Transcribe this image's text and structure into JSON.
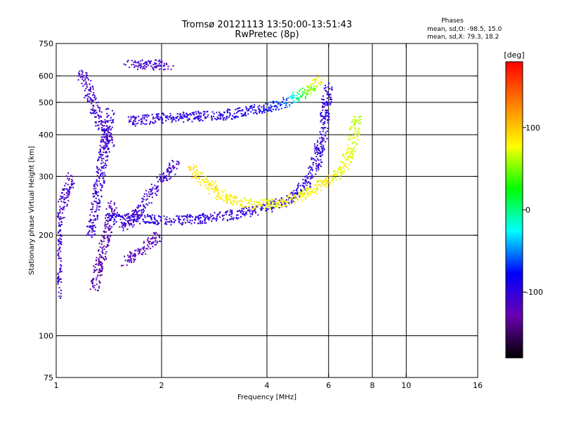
{
  "chart_data": {
    "type": "scatter",
    "title": "Tromsø 20121113 13:50:00-13:51:43",
    "subtitle": "RwPretec (8p)",
    "xlabel": "Frequency [MHz]",
    "ylabel": "Stationary phase Virtual Height [km]",
    "x_scale": "log",
    "y_scale": "log",
    "xlim": [
      1,
      16
    ],
    "ylim": [
      75,
      750
    ],
    "x_ticks": [
      1,
      2,
      4,
      6,
      8,
      10,
      16
    ],
    "x_gridlines": [
      2,
      4,
      6,
      8,
      10
    ],
    "y_ticks": [
      75,
      100,
      200,
      300,
      400,
      500,
      600,
      750
    ],
    "y_gridlines": [
      100,
      200,
      300,
      400,
      500,
      600
    ],
    "grid": true,
    "stats": {
      "heading": "Phases",
      "line1": "mean, sd,O: -98.5, 15.0",
      "line2": "mean, sd,X:  79.3, 18.2"
    },
    "colorbar": {
      "label": "[deg]",
      "range": [
        -180,
        180
      ],
      "ticks": [
        100,
        0,
        -100
      ],
      "colors": [
        "#ff0000",
        "#ff8000",
        "#ffff00",
        "#00ff00",
        "#00ffff",
        "#0000ff",
        "#6a00b0",
        "#000000"
      ]
    },
    "series": [
      {
        "trace": "low-frequency near-vertical band",
        "x": [
          1.0,
          1.0,
          1.1
        ],
        "y": [
          130,
          220,
          300
        ],
        "phase_deg": [
          -110,
          -110,
          -110
        ]
      },
      {
        "trace": "spur trace",
        "x": [
          1.18,
          1.3,
          1.42
        ],
        "y": [
          620,
          460,
          380
        ],
        "phase_deg": [
          -110,
          -110,
          -110
        ]
      },
      {
        "trace": "column 1.25-1.42 MHz",
        "x": [
          1.25,
          1.42
        ],
        "y": [
          200,
          470
        ],
        "phase_deg": [
          -105,
          -105
        ]
      },
      {
        "trace": "column 1.28-1.45 MHz",
        "x": [
          1.28,
          1.45
        ],
        "y": [
          140,
          250
        ],
        "phase_deg": [
          -125,
          -125
        ]
      },
      {
        "trace": "top trace",
        "x": [
          1.6,
          2.1
        ],
        "y": [
          650,
          650
        ],
        "phase_deg": [
          -110,
          -110
        ]
      },
      {
        "trace": "upper echo",
        "x": [
          1.6,
          2.0,
          3.0,
          3.8,
          4.5,
          5.2,
          5.7
        ],
        "y": [
          440,
          450,
          460,
          480,
          500,
          540,
          600
        ],
        "phase_deg": [
          -105,
          -100,
          -95,
          -90,
          -60,
          40,
          90
        ]
      },
      {
        "trace": "O-mode trace",
        "x": [
          1.4,
          1.7,
          2.1,
          2.6,
          3.2,
          3.8,
          4.3,
          4.8,
          5.2,
          5.5,
          5.8,
          5.95
        ],
        "y": [
          230,
          225,
          222,
          225,
          232,
          240,
          250,
          265,
          290,
          330,
          420,
          560
        ],
        "phase_deg": [
          -100,
          -100,
          -100,
          -100,
          -100,
          -98,
          -95,
          -95,
          -95,
          -100,
          -100,
          -100
        ]
      },
      {
        "trace": "X-mode trace",
        "x": [
          2.4,
          3.0,
          3.6,
          4.2,
          4.9,
          5.6,
          6.2,
          6.7,
          7.0,
          7.2
        ],
        "y": [
          320,
          260,
          248,
          250,
          262,
          280,
          300,
          330,
          380,
          450
        ],
        "phase_deg": [
          85,
          85,
          80,
          80,
          80,
          85,
          80,
          75,
          70,
          60
        ]
      },
      {
        "trace": "clusters 1.5-2.2 MHz",
        "x": [
          1.55,
          2.2
        ],
        "y": [
          210,
          330
        ],
        "phase_deg": [
          -105,
          -105
        ]
      },
      {
        "trace": "clusters 1.5-1.95 MHz",
        "x": [
          1.55,
          1.95
        ],
        "y": [
          165,
          200
        ],
        "phase_deg": [
          -120,
          -120
        ]
      }
    ]
  }
}
